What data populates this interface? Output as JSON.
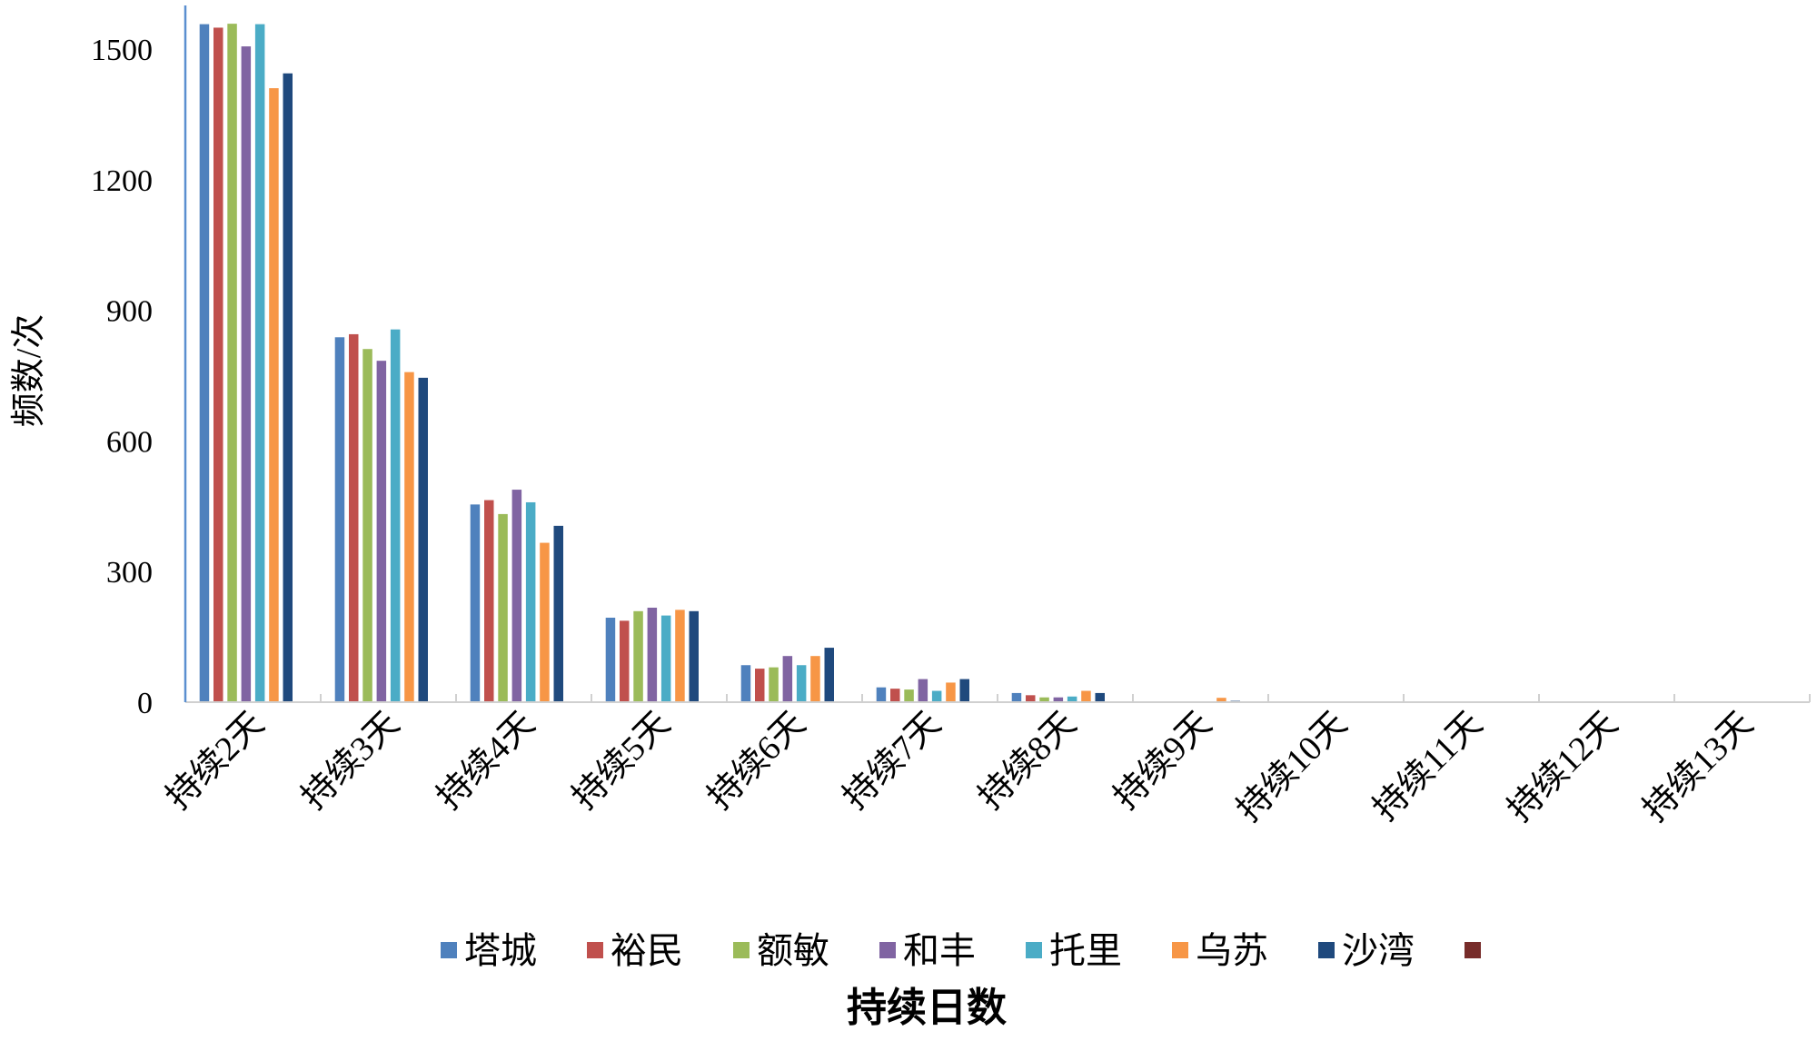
{
  "chart_data": {
    "type": "bar",
    "categories": [
      "持续2天",
      "持续3天",
      "持续4天",
      "持续5天",
      "持续6天",
      "持续7天",
      "持续8天",
      "持续9天",
      "持续10天",
      "持续11天",
      "持续12天",
      "持续13天"
    ],
    "series": [
      {
        "name": "塔城",
        "color": "#4F81BD",
        "values": [
          1557,
          838,
          454,
          194,
          85,
          34,
          21,
          1,
          0,
          0,
          0,
          0
        ]
      },
      {
        "name": "裕民",
        "color": "#C0504D",
        "values": [
          1549,
          845,
          464,
          187,
          77,
          31,
          16,
          1,
          0,
          0,
          0,
          0
        ]
      },
      {
        "name": "额敏",
        "color": "#9BBB59",
        "values": [
          1558,
          811,
          432,
          209,
          80,
          29,
          11,
          1,
          0,
          0,
          0,
          0
        ]
      },
      {
        "name": "和丰",
        "color": "#8064A2",
        "values": [
          1506,
          784,
          488,
          217,
          106,
          53,
          11,
          1,
          0,
          0,
          0,
          0
        ]
      },
      {
        "name": "托里",
        "color": "#4BACC6",
        "values": [
          1557,
          856,
          459,
          199,
          85,
          26,
          13,
          1,
          0,
          0,
          0,
          0
        ]
      },
      {
        "name": "乌苏",
        "color": "#F79646",
        "values": [
          1410,
          758,
          366,
          212,
          106,
          45,
          26,
          10,
          0,
          0,
          0,
          0
        ]
      },
      {
        "name": "沙湾",
        "color": "#1F497D",
        "values": [
          1444,
          745,
          405,
          209,
          125,
          53,
          21,
          3,
          2,
          0,
          0,
          0
        ]
      },
      {
        "color": "#772C2A",
        "values": [
          0,
          0,
          0,
          0,
          0,
          0,
          0,
          0,
          0,
          0,
          0,
          0
        ]
      }
    ],
    "xlabel": "持续日数",
    "ylabel": "频数/次",
    "ylim": [
      0,
      1600
    ],
    "yticks": [
      0,
      300,
      600,
      900,
      1200,
      1500
    ],
    "grid": false,
    "legend": "bottom"
  }
}
